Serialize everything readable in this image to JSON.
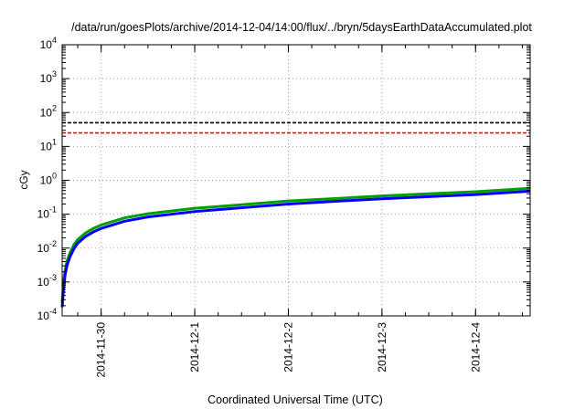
{
  "chart_data": {
    "type": "line",
    "title": "/data/run/goesPlots/archive/2014-12-04/14:00/flux/../bryn/5daysEarthDataAccumulated.plot",
    "xlabel": "Coordinated Universal Time (UTC)",
    "ylabel": "cGy",
    "yscale": "log",
    "ylim": [
      0.0001,
      10000
    ],
    "xlim": [
      "2014-11-29T14:00",
      "2014-12-04T14:00"
    ],
    "grid": true,
    "y_ticks": [
      {
        "value": 0.0001,
        "base": "10",
        "exp": "-4"
      },
      {
        "value": 0.001,
        "base": "10",
        "exp": "-3"
      },
      {
        "value": 0.01,
        "base": "10",
        "exp": "-2"
      },
      {
        "value": 0.1,
        "base": "10",
        "exp": "-1"
      },
      {
        "value": 1,
        "base": "10",
        "exp": "0"
      },
      {
        "value": 10,
        "base": "10",
        "exp": "1"
      },
      {
        "value": 100,
        "base": "10",
        "exp": "2"
      },
      {
        "value": 1000,
        "base": "10",
        "exp": "3"
      },
      {
        "value": 10000,
        "base": "10",
        "exp": "4"
      }
    ],
    "x_ticks": [
      {
        "value": "2014-11-30T00:00",
        "label": "2014-11-30"
      },
      {
        "value": "2014-12-01T00:00",
        "label": "2014-12-1"
      },
      {
        "value": "2014-12-02T00:00",
        "label": "2014-12-2"
      },
      {
        "value": "2014-12-03T00:00",
        "label": "2014-12-3"
      },
      {
        "value": "2014-12-04T00:00",
        "label": "2014-12-4"
      }
    ],
    "reference_lines": [
      {
        "y": 50,
        "color": "#000000",
        "style": "dashed"
      },
      {
        "y": 25,
        "color": "#ff0000",
        "style": "dashed"
      }
    ],
    "series": [
      {
        "color": "#00a000",
        "points": [
          [
            "2014-11-29T14:00",
            0.00025
          ],
          [
            "2014-11-29T14:20",
            0.0009
          ],
          [
            "2014-11-29T14:45",
            0.0022
          ],
          [
            "2014-11-29T15:15",
            0.0042
          ],
          [
            "2014-11-29T16:00",
            0.0072
          ],
          [
            "2014-11-29T17:00",
            0.0125
          ],
          [
            "2014-11-29T18:00",
            0.018
          ],
          [
            "2014-11-29T20:00",
            0.028
          ],
          [
            "2014-11-29T22:00",
            0.038
          ],
          [
            "2014-11-30T00:00",
            0.048
          ],
          [
            "2014-11-30T06:00",
            0.078
          ],
          [
            "2014-11-30T12:00",
            0.103
          ],
          [
            "2014-12-01T00:00",
            0.15
          ],
          [
            "2014-12-01T12:00",
            0.19
          ],
          [
            "2014-12-02T00:00",
            0.245
          ],
          [
            "2014-12-02T12:00",
            0.29
          ],
          [
            "2014-12-03T00:00",
            0.345
          ],
          [
            "2014-12-03T12:00",
            0.4
          ],
          [
            "2014-12-04T00:00",
            0.46
          ],
          [
            "2014-12-04T14:00",
            0.58
          ]
        ]
      },
      {
        "color": "#0000ff",
        "points": [
          [
            "2014-11-29T14:00",
            0.00018
          ],
          [
            "2014-11-29T14:20",
            0.0006
          ],
          [
            "2014-11-29T14:45",
            0.0016
          ],
          [
            "2014-11-29T15:15",
            0.0031
          ],
          [
            "2014-11-29T16:00",
            0.0055
          ],
          [
            "2014-11-29T17:00",
            0.0095
          ],
          [
            "2014-11-29T18:00",
            0.014
          ],
          [
            "2014-11-29T20:00",
            0.022
          ],
          [
            "2014-11-29T22:00",
            0.03
          ],
          [
            "2014-11-30T00:00",
            0.038
          ],
          [
            "2014-11-30T06:00",
            0.062
          ],
          [
            "2014-11-30T12:00",
            0.083
          ],
          [
            "2014-12-01T00:00",
            0.12
          ],
          [
            "2014-12-01T12:00",
            0.155
          ],
          [
            "2014-12-02T00:00",
            0.2
          ],
          [
            "2014-12-02T12:00",
            0.24
          ],
          [
            "2014-12-03T00:00",
            0.285
          ],
          [
            "2014-12-03T12:00",
            0.33
          ],
          [
            "2014-12-04T00:00",
            0.38
          ],
          [
            "2014-12-04T14:00",
            0.48
          ]
        ]
      }
    ]
  }
}
